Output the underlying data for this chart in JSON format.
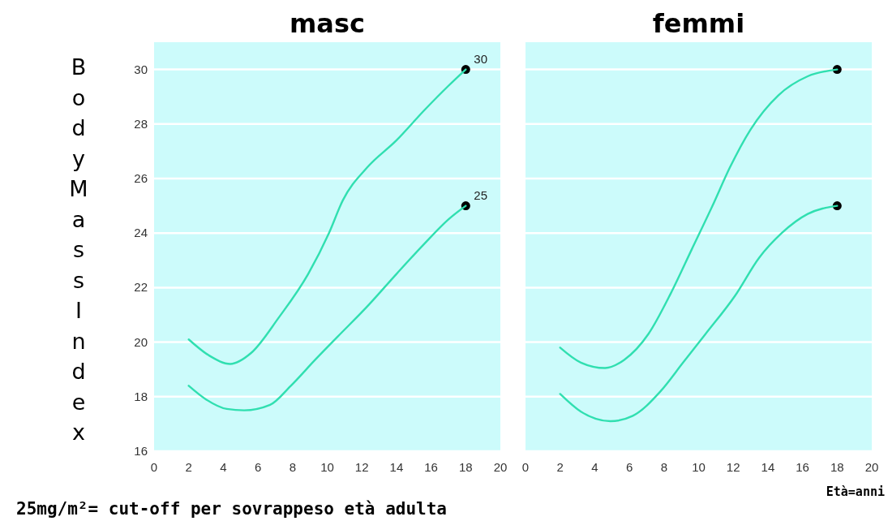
{
  "chart_data": [
    {
      "type": "line",
      "title": "masc",
      "ylabel": "BodyMassIndex",
      "xlim": [
        0,
        20
      ],
      "xticks": [
        0,
        2,
        4,
        6,
        8,
        10,
        12,
        14,
        16,
        18,
        20
      ],
      "ylim": [
        16,
        31
      ],
      "yticks": [
        16,
        18,
        20,
        22,
        24,
        26,
        28,
        30
      ],
      "grid": "y",
      "line_style": "solid",
      "annotations": [
        "25mg/m²= cut-off per sovrappeso età adulta"
      ],
      "series": [
        {
          "color": "#30dfb0",
          "x": [
            2,
            3.2,
            4.4,
            5.6,
            7.2,
            8.9,
            10.1,
            10.9,
            12.3,
            14,
            15.6,
            17,
            18
          ],
          "values": [
            20.1,
            19.5,
            19.2,
            19.6,
            20.9,
            22.5,
            24,
            25.2,
            26.4,
            27.4,
            28.5,
            29.4,
            30
          ]
        },
        {
          "color": "#30dfb0",
          "x": [
            2,
            3,
            4.2,
            5.2,
            6.7,
            7.9,
            9.3,
            10.6,
            12.3,
            14,
            15.6,
            17,
            18
          ],
          "values": [
            18.4,
            17.9,
            17.55,
            17.5,
            17.7,
            18.4,
            19.35,
            20.2,
            21.3,
            22.5,
            23.6,
            24.5,
            25
          ]
        },
        {
          "type": "scatter",
          "marker": "circle",
          "color": "#000000",
          "x": [
            18,
            18
          ],
          "values": [
            30,
            25
          ],
          "value_labels": [
            "30",
            "25"
          ]
        }
      ]
    },
    {
      "type": "line",
      "title": "femmi",
      "xlabel": "Età=anni",
      "xlim": [
        0,
        20
      ],
      "xticks": [
        0,
        2,
        4,
        6,
        8,
        10,
        12,
        14,
        16,
        18,
        20
      ],
      "ylim": [
        16,
        31
      ],
      "yticks": [
        16,
        18,
        20,
        22,
        24,
        26,
        28,
        30
      ],
      "tick_labels": "x",
      "grid": "y",
      "line_style": "solid",
      "series": [
        {
          "color": "#30dfb0",
          "x": [
            2,
            3.2,
            4.6,
            5.7,
            7.1,
            8.4,
            9.6,
            10.8,
            11.8,
            13,
            14.6,
            16.3,
            18
          ],
          "values": [
            19.8,
            19.25,
            19.05,
            19.35,
            20.3,
            21.8,
            23.4,
            25,
            26.4,
            27.8,
            29.05,
            29.75,
            30
          ]
        },
        {
          "color": "#30dfb0",
          "x": [
            2,
            3.2,
            4.9,
            6.2,
            7.8,
            9.1,
            10.4,
            12.1,
            13.5,
            14.8,
            16.3,
            18
          ],
          "values": [
            18.1,
            17.45,
            17.1,
            17.3,
            18.2,
            19.25,
            20.3,
            21.7,
            23.1,
            24,
            24.7,
            25
          ]
        },
        {
          "type": "scatter",
          "marker": "circle",
          "color": "#000000",
          "x": [
            18,
            18
          ],
          "values": [
            30,
            25
          ]
        }
      ]
    }
  ]
}
